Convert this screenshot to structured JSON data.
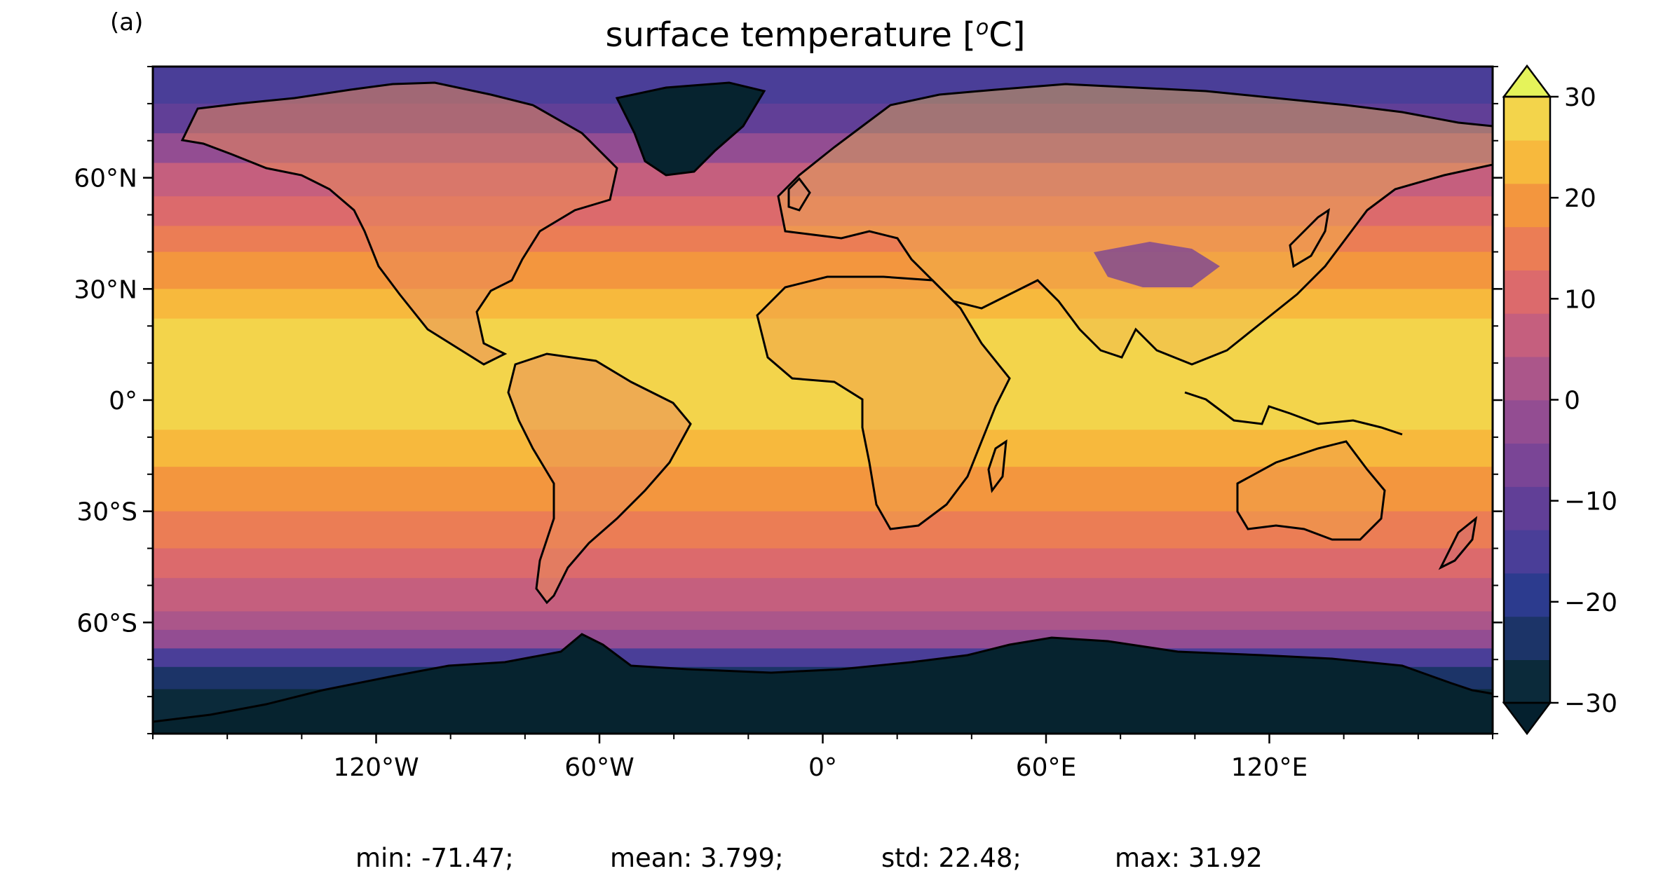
{
  "panel_label": "(a)",
  "title_prefix": "surface temperature [",
  "title_sup": "o",
  "title_suffix": "C]",
  "map": {
    "projection": "PlateCarree",
    "lon_range": [
      -180,
      180
    ],
    "lat_range": [
      -90,
      90
    ],
    "coastlines": true,
    "colormap": "thermal",
    "x_ticks": [
      {
        "value": -120,
        "label": "120°W"
      },
      {
        "value": -60,
        "label": "60°W"
      },
      {
        "value": 0,
        "label": "0°"
      },
      {
        "value": 60,
        "label": "60°E"
      },
      {
        "value": 120,
        "label": "120°E"
      }
    ],
    "y_ticks": [
      {
        "value": 60,
        "label": "60°N"
      },
      {
        "value": 30,
        "label": "30°N"
      },
      {
        "value": 0,
        "label": "0°"
      },
      {
        "value": -30,
        "label": "30°S"
      },
      {
        "value": -60,
        "label": "60°S"
      }
    ]
  },
  "colorbar": {
    "range": [
      -30,
      30
    ],
    "levels": [
      -30,
      -25,
      -20,
      -15,
      -10,
      -5,
      0,
      5,
      10,
      15,
      20,
      25,
      30
    ],
    "extend": "both",
    "ticks": [
      {
        "value": 30,
        "label": "30"
      },
      {
        "value": 20,
        "label": "20"
      },
      {
        "value": 10,
        "label": "10"
      },
      {
        "value": 0,
        "label": "0"
      },
      {
        "value": -10,
        "label": "−10"
      },
      {
        "value": -20,
        "label": "−20"
      },
      {
        "value": -30,
        "label": "−30"
      }
    ],
    "colors": [
      "#0b2a3a",
      "#1c3468",
      "#2c3b8e",
      "#4a3e98",
      "#613f97",
      "#7a4596",
      "#934d92",
      "#ab568a",
      "#c55f7e",
      "#dc6a6c",
      "#eb7d55",
      "#f3963e",
      "#f7b93d",
      "#f3d44b"
    ],
    "extend_min_color": "#04202e",
    "extend_max_color": "#e5f35a"
  },
  "stats": {
    "min": "min: -71.47;",
    "mean": "mean: 3.799;",
    "std": "std: 22.48;",
    "max": "max: 31.92"
  }
}
